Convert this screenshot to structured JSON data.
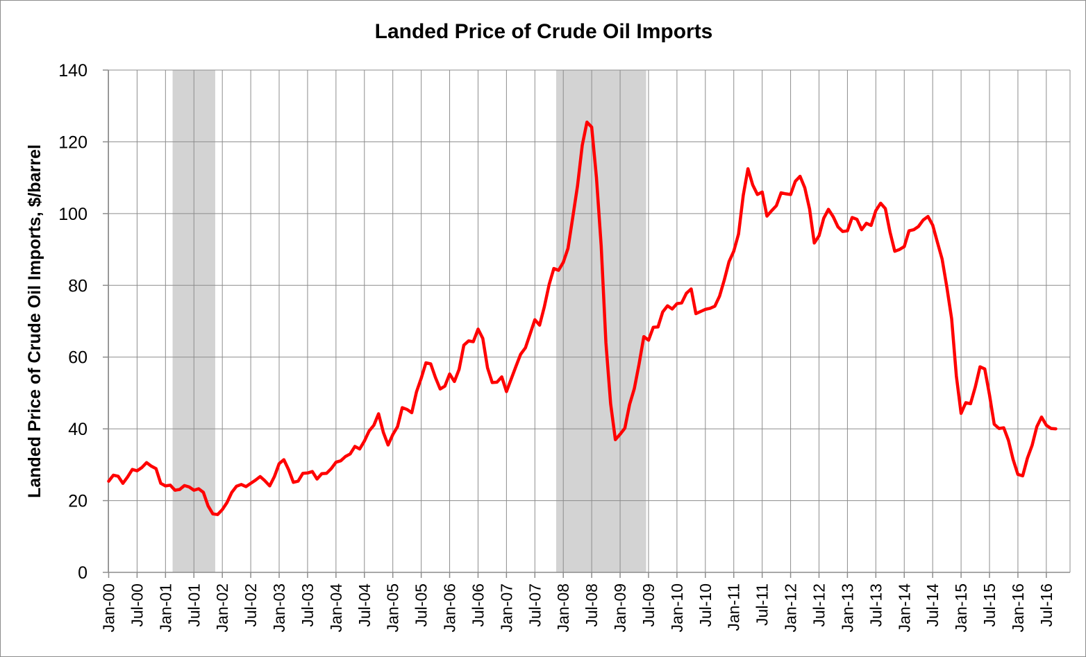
{
  "chart_data": {
    "type": "line",
    "title": "Landed Price of Crude Oil Imports",
    "ylabel": "Landed Price of Crude Oil Imports, $/barrel",
    "xlabel": "",
    "ylim": [
      0,
      140
    ],
    "yticks": [
      0,
      20,
      40,
      60,
      80,
      100,
      120,
      140
    ],
    "grid": true,
    "x_start": "Jan-00",
    "x_interval": "monthly",
    "x_tick_labels": [
      "Jan-00",
      "Jul-00",
      "Jan-01",
      "Jul-01",
      "Jan-02",
      "Jul-02",
      "Jan-03",
      "Jul-03",
      "Jan-04",
      "Jul-04",
      "Jan-05",
      "Jul-05",
      "Jan-06",
      "Jul-06",
      "Jan-07",
      "Jul-07",
      "Jan-08",
      "Jul-08",
      "Jan-09",
      "Jul-09",
      "Jan-10",
      "Jul-10",
      "Jan-11",
      "Jul-11",
      "Jan-12",
      "Jul-12",
      "Jan-13",
      "Jul-13",
      "Jan-14",
      "Jul-14",
      "Jan-15",
      "Jul-15",
      "Jan-16",
      "Jul-16"
    ],
    "shaded_periods": [
      {
        "start": "Mar-01",
        "end": "Nov-01",
        "color": "#d3d3d3"
      },
      {
        "start": "Dec-07",
        "end": "Jun-09",
        "color": "#d3d3d3"
      }
    ],
    "series": [
      {
        "color": "#ff0000",
        "values": [
          25.4,
          27.1,
          26.8,
          24.8,
          26.6,
          28.7,
          28.3,
          29.2,
          30.6,
          29.6,
          28.9,
          24.8,
          24.1,
          24.3,
          22.9,
          23.1,
          24.2,
          23.8,
          22.9,
          23.3,
          22.3,
          18.5,
          16.3,
          16.1,
          17.5,
          19.5,
          22.3,
          24.0,
          24.5,
          23.9,
          24.8,
          25.7,
          26.7,
          25.5,
          24.1,
          26.7,
          30.3,
          31.4,
          28.6,
          25.1,
          25.4,
          27.6,
          27.7,
          28.1,
          26.0,
          27.5,
          27.6,
          28.9,
          30.7,
          31.1,
          32.3,
          33.0,
          35.1,
          34.4,
          36.6,
          39.4,
          41.0,
          44.2,
          39.0,
          35.5,
          38.4,
          40.6,
          45.9,
          45.4,
          44.5,
          50.3,
          54.1,
          58.4,
          58.1,
          54.3,
          51.1,
          51.9,
          55.3,
          53.2,
          56.6,
          63.3,
          64.5,
          64.3,
          67.8,
          65.2,
          57.0,
          52.9,
          53.0,
          54.5,
          50.4,
          53.9,
          57.4,
          60.8,
          62.6,
          66.5,
          70.4,
          68.9,
          74.0,
          80.2,
          84.7,
          84.2,
          86.4,
          90.3,
          99.0,
          107.7,
          119.0,
          125.5,
          124.1,
          110.0,
          91.0,
          64.0,
          47.0,
          37.0,
          38.5,
          40.2,
          46.8,
          51.2,
          58.0,
          65.7,
          64.7,
          68.3,
          68.4,
          72.6,
          74.3,
          73.4,
          74.9,
          75.1,
          77.8,
          79.0,
          72.1,
          72.7,
          73.3,
          73.6,
          74.2,
          77.0,
          81.5,
          86.6,
          89.5,
          94.3,
          105.1,
          112.5,
          108.0,
          105.3,
          106.0,
          99.3,
          100.8,
          102.2,
          105.8,
          105.5,
          105.3,
          109.0,
          110.4,
          107.2,
          101.3,
          91.8,
          93.8,
          98.7,
          101.2,
          99.1,
          96.3,
          95.0,
          95.2,
          98.9,
          98.4,
          95.5,
          97.3,
          96.7,
          100.8,
          102.9,
          101.4,
          94.8,
          89.5,
          90.0,
          90.8,
          95.2,
          95.5,
          96.4,
          98.2,
          99.2,
          96.8,
          92.0,
          87.3,
          79.5,
          70.7,
          54.7,
          44.3,
          47.3,
          47.0,
          51.7,
          57.3,
          56.7,
          49.5,
          41.3,
          40.1,
          40.3,
          36.8,
          31.4,
          27.3,
          26.9,
          31.8,
          35.4,
          40.6,
          43.3,
          41.0,
          40.1,
          40.0
        ]
      }
    ]
  }
}
